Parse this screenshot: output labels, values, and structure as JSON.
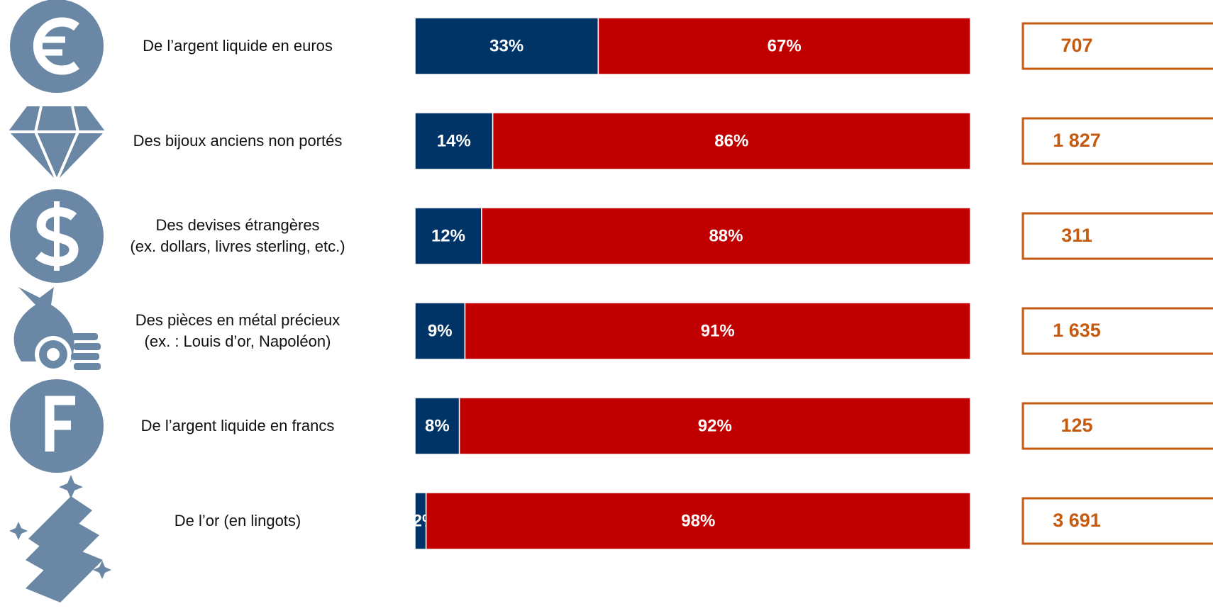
{
  "chart_data": {
    "type": "bar",
    "orientation": "horizontal",
    "stacked": true,
    "categories": [
      "De l’argent liquide en euros",
      "Des bijoux anciens non portés",
      "Des devises étrangères\n(ex. dollars, livres sterling, etc.)",
      "Des pièces en métal précieux\n(ex. : Louis d’or, Napoléon)",
      "De l’argent liquide en francs",
      "De l’or (en lingots)"
    ],
    "xlim": [
      0,
      100
    ],
    "series": [
      {
        "color": "#003366",
        "values": [
          33,
          14,
          12,
          9,
          8,
          2
        ],
        "value_labels": [
          "33%",
          "14%",
          "12%",
          "9%",
          "8%",
          "2%"
        ]
      },
      {
        "color": "#c00000",
        "values": [
          67,
          86,
          88,
          91,
          92,
          98
        ],
        "value_labels": [
          "67%",
          "86%",
          "88%",
          "91%",
          "92%",
          "98%"
        ]
      }
    ],
    "counts": {
      "color": "#c55a11",
      "values": [
        707,
        1827,
        311,
        1635,
        125,
        3691
      ],
      "value_labels": [
        "707",
        "1 827",
        "311",
        "1 635",
        "125",
        "3 691"
      ]
    }
  }
}
